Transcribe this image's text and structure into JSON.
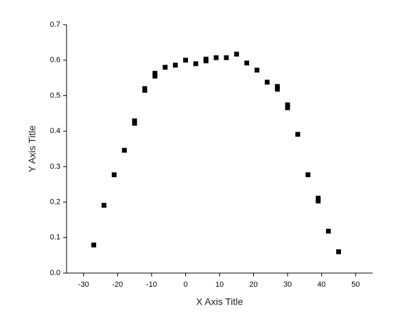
{
  "chart_data": {
    "type": "scatter",
    "x_label": "X Axis Title",
    "y_label": "Y Axis Title",
    "series": [
      {
        "color": "#000000",
        "x": [
          -27,
          -24,
          -21,
          -18,
          -15,
          -15,
          -12,
          -12,
          -9,
          -9,
          -6,
          -3,
          0,
          3,
          6,
          6,
          9,
          12,
          15,
          18,
          21,
          24,
          27,
          27,
          30,
          30,
          33,
          36,
          39,
          39,
          42,
          45
        ],
        "values": [
          0.079,
          0.191,
          0.277,
          0.346,
          0.429,
          0.422,
          0.52,
          0.515,
          0.563,
          0.555,
          0.58,
          0.586,
          0.6,
          0.59,
          0.603,
          0.598,
          0.607,
          0.607,
          0.617,
          0.592,
          0.572,
          0.538,
          0.526,
          0.518,
          0.474,
          0.466,
          0.391,
          0.277,
          0.211,
          0.203,
          0.118,
          0.06
        ]
      }
    ],
    "xlim": [
      -35,
      55
    ],
    "xticks": [
      -30,
      -20,
      -10,
      0,
      10,
      20,
      30,
      40,
      50
    ],
    "ylim": [
      0,
      0.7
    ],
    "yticks": [
      {
        "value": 0,
        "label": "0.0"
      },
      0.1,
      0.2,
      0.3,
      0.4,
      0.5,
      0.6,
      0.7
    ],
    "grid": false
  }
}
